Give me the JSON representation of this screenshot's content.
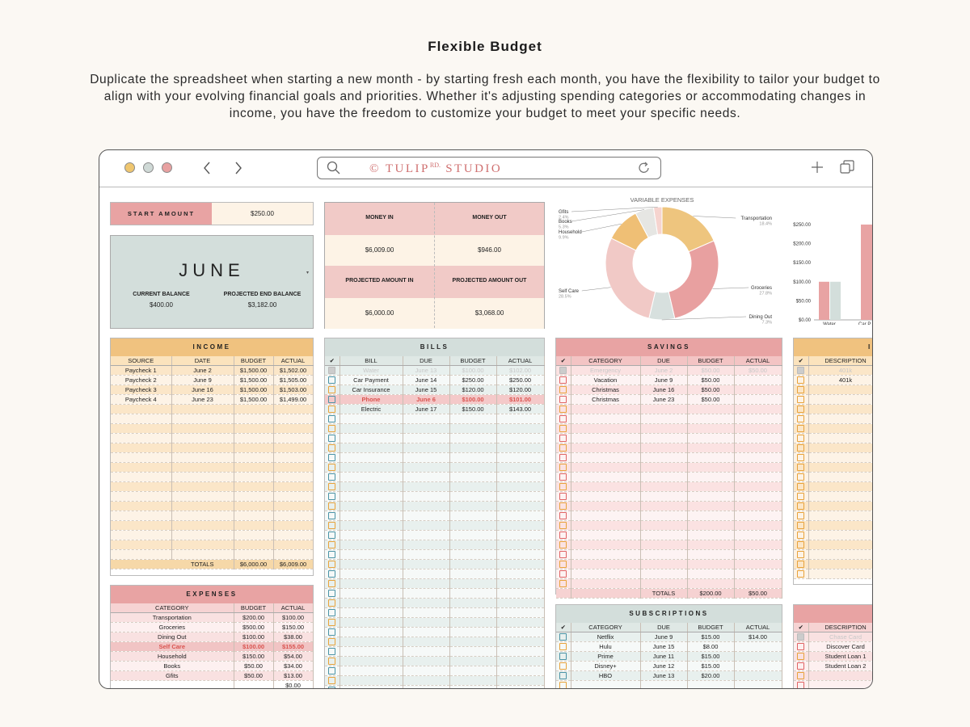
{
  "hero": {
    "title": "Flexible Budget",
    "description": "Duplicate the spreadsheet when starting a new month - by starting fresh each month, you have the flexibility to tailor your budget to align with your evolving financial goals and priorities. Whether it's adjusting spending categories or accommodating changes in income, you have the freedom to customize your budget to meet your specific needs."
  },
  "browser": {
    "url_brand": "© TULIP",
    "url_sup": "RD.",
    "url_rest": " STUDIO",
    "icons": [
      "search-icon",
      "reload-icon",
      "plus-icon",
      "tabs-icon",
      "back-icon",
      "forward-icon"
    ]
  },
  "summary": {
    "start_amount_label": "START AMOUNT",
    "start_amount": "$250.00",
    "month": "JUNE",
    "current_balance_label": "CURRENT BALANCE",
    "current_balance": "$400.00",
    "projected_end_label": "PROJECTED END BALANCE",
    "projected_end": "$3,182.00",
    "money_in_label": "MONEY IN",
    "money_out_label": "MONEY OUT",
    "money_in": "$6,009.00",
    "money_out": "$946.00",
    "projected_in_label": "PROJECTED AMOUNT IN",
    "projected_out_label": "PROJECTED AMOUNT OUT",
    "projected_in": "$6,000.00",
    "projected_out": "$3,068.00"
  },
  "donut": {
    "title": "VARIABLE EXPENSES",
    "labels": [
      {
        "name": "Gfits",
        "pct": "2.4%"
      },
      {
        "name": "Books",
        "pct": "5.3%"
      },
      {
        "name": "Household",
        "pct": "9.9%"
      },
      {
        "name": "Transportation",
        "pct": "18.4%"
      },
      {
        "name": "Groceries",
        "pct": "27.8%"
      },
      {
        "name": "Dining Out",
        "pct": "7.3%"
      },
      {
        "name": "Self Care",
        "pct": "28.5%"
      }
    ]
  },
  "chart_data": {
    "type": "pie",
    "title": "VARIABLE EXPENSES",
    "categories": [
      "Transportation",
      "Groceries",
      "Dining Out",
      "Self Care",
      "Household",
      "Books",
      "Gfits"
    ],
    "values": [
      18.4,
      27.8,
      7.3,
      28.5,
      9.9,
      5.3,
      2.4
    ],
    "colors": [
      "#eec57e",
      "#e8a0a0",
      "#d7e0de",
      "#f1c9c6",
      "#efbf75",
      "#e6e6e3",
      "#f6d4cf"
    ]
  },
  "bar_chart": {
    "ticks": [
      "$250.00",
      "$200.00",
      "$150.00",
      "$100.00",
      "$50.00",
      "$0.00"
    ],
    "xlabels": [
      "Water",
      "Car P"
    ],
    "values": [
      [
        100,
        100
      ],
      [
        250
      ]
    ]
  },
  "colors": {
    "pink": "#e8a3a3",
    "peach": "#f0c27f",
    "sage": "#d3dedb",
    "light_pink": "#f6dcdc",
    "cream": "#fdf3e6",
    "red_text": "#d9534f"
  },
  "income": {
    "title": "INCOME",
    "headers": [
      "SOURCE",
      "DATE",
      "BUDGET",
      "ACTUAL"
    ],
    "rows": [
      [
        "Paycheck 1",
        "June 2",
        "$1,500.00",
        "$1,502.00"
      ],
      [
        "Paycheck 2",
        "June 9",
        "$1,500.00",
        "$1,505.00"
      ],
      [
        "Paycheck 3",
        "June 16",
        "$1,500.00",
        "$1,503.00"
      ],
      [
        "Paycheck 4",
        "June 23",
        "$1,500.00",
        "$1,499.00"
      ]
    ],
    "totals_label": "TOTALS",
    "total_budget": "$6,000.00",
    "total_actual": "$6,009.00"
  },
  "expenses": {
    "title": "EXPENSES",
    "headers": [
      "CATEGORY",
      "BUDGET",
      "ACTUAL"
    ],
    "rows": [
      [
        "Transportation",
        "$200.00",
        "$100.00"
      ],
      [
        "Groceries",
        "$500.00",
        "$150.00"
      ],
      [
        "Dining Out",
        "$100.00",
        "$38.00"
      ],
      [
        "Self Care",
        "$100.00",
        "$155.00"
      ],
      [
        "Household",
        "$150.00",
        "$54.00"
      ],
      [
        "Books",
        "$50.00",
        "$34.00"
      ],
      [
        "Gfits",
        "$50.00",
        "$13.00"
      ]
    ],
    "partial": "$0.00"
  },
  "bills": {
    "title": "BILLS",
    "headers": [
      "✔",
      "BILL",
      "DUE",
      "BUDGET",
      "ACTUAL"
    ],
    "rows": [
      [
        "Water",
        "June 13",
        "$100.00",
        "$102.00"
      ],
      [
        "Car Payment",
        "June 14",
        "$250.00",
        "$250.00"
      ],
      [
        "Car Insurance",
        "June 15",
        "$120.00",
        "$120.00"
      ],
      [
        "Phone",
        "June 6",
        "$100.00",
        "$101.00"
      ],
      [
        "Electric",
        "June 17",
        "$150.00",
        "$143.00"
      ]
    ]
  },
  "savings": {
    "title": "SAVINGS",
    "headers": [
      "✔",
      "CATEGORY",
      "DUE",
      "BUDGET",
      "ACTUAL"
    ],
    "rows": [
      [
        "Emergency",
        "June 2",
        "$50.00",
        "$50.00"
      ],
      [
        "Vacation",
        "June 9",
        "$50.00",
        ""
      ],
      [
        "Christmas",
        "June 16",
        "$50.00",
        ""
      ],
      [
        "Christmas",
        "June 23",
        "$50.00",
        ""
      ]
    ],
    "totals_label": "TOTALS",
    "total_budget": "$200.00",
    "total_actual": "$50.00"
  },
  "subscriptions": {
    "title": "SUBSCRIPTIONS",
    "headers": [
      "✔",
      "CATEGORY",
      "DUE",
      "BUDGET",
      "ACTUAL"
    ],
    "rows": [
      [
        "Netflix",
        "June 9",
        "$15.00",
        "$14.00"
      ],
      [
        "Hulu",
        "June 15",
        "$8.00",
        ""
      ],
      [
        "Prime",
        "June 11",
        "$15.00",
        ""
      ],
      [
        "Disney+",
        "June 12",
        "$15.00",
        ""
      ],
      [
        "HBO",
        "June 13",
        "$20.00",
        ""
      ]
    ]
  },
  "investments": {
    "title_partial": "IN",
    "headers": [
      "✔",
      "DESCRIPTION"
    ],
    "rows": [
      "401k",
      "401k"
    ]
  },
  "debt": {
    "headers": [
      "✔",
      "DESCRIPTION"
    ],
    "rows": [
      "Chase Card",
      "Discover Card",
      "Student Loan 1",
      "Student Loan 2"
    ]
  }
}
